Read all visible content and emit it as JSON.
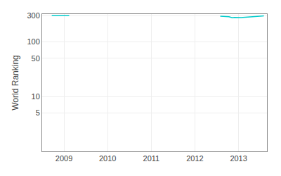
{
  "chart_data": {
    "type": "line",
    "ylabel": "World Ranking",
    "series": [
      {
        "color": "#00cccc",
        "x": [
          2008.72,
          2008.78,
          2009.08,
          2009.12
        ],
        "values": [
          300,
          300,
          300,
          300
        ]
      },
      {
        "color": "#00cccc",
        "x": [
          2012.58,
          2012.62,
          2012.66,
          2012.7,
          2012.74,
          2012.78,
          2012.82,
          2012.86,
          2012.9,
          2012.94,
          2012.98,
          2013.02,
          2013.06,
          2013.1,
          2013.14,
          2013.18,
          2013.22,
          2013.26,
          2013.3,
          2013.34,
          2013.38,
          2013.42,
          2013.46,
          2013.5,
          2013.54,
          2013.58
        ],
        "values": [
          293,
          292,
          294,
          291,
          293,
          287,
          280,
          275,
          278,
          276,
          280,
          278,
          276,
          278,
          280,
          283,
          285,
          287,
          289,
          290,
          292,
          293,
          294,
          295,
          296,
          297
        ]
      }
    ],
    "xlim": [
      2008.5,
      2013.65
    ],
    "ylim": [
      1,
      320
    ],
    "xticks": [
      2009,
      2010,
      2011,
      2012,
      2013
    ],
    "yticks": [
      5,
      10,
      50,
      100,
      300
    ],
    "log": "y",
    "grid": true
  }
}
